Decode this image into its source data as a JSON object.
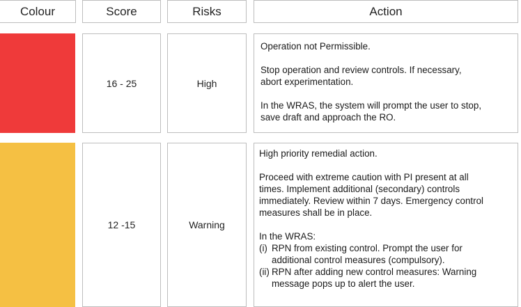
{
  "headers": {
    "colour": "Colour",
    "score": "Score",
    "risks": "Risks",
    "action": "Action"
  },
  "rows": [
    {
      "color": "#ef3a3a",
      "score": "16 - 25",
      "risk": "High",
      "action": {
        "p1": "Operation not Permissible.",
        "p2a": "Stop operation and review controls. If necessary,",
        "p2b": "abort experimentation.",
        "p3a": "In the WRAS, the system will prompt the user to stop,",
        "p3b": "save draft and approach the RO."
      }
    },
    {
      "color": "#f5c043",
      "score": "12 -15",
      "risk": "Warning",
      "action": {
        "p1": "High priority remedial action.",
        "p2a": "Proceed with extreme caution with PI present at all",
        "p2b": "times. Implement additional (secondary) controls",
        "p2c": "immediately. Review within 7 days. Emergency control",
        "p2d": "measures shall be in place.",
        "p3": "In the WRAS:",
        "i_marker": "(i)",
        "i_a": "RPN from existing control. Prompt the user for",
        "i_b": "additional control measures (compulsory).",
        "ii_marker": "(ii)",
        "ii_a": "RPN after adding new control measures: Warning",
        "ii_b": "message pops up to alert the user."
      }
    }
  ]
}
